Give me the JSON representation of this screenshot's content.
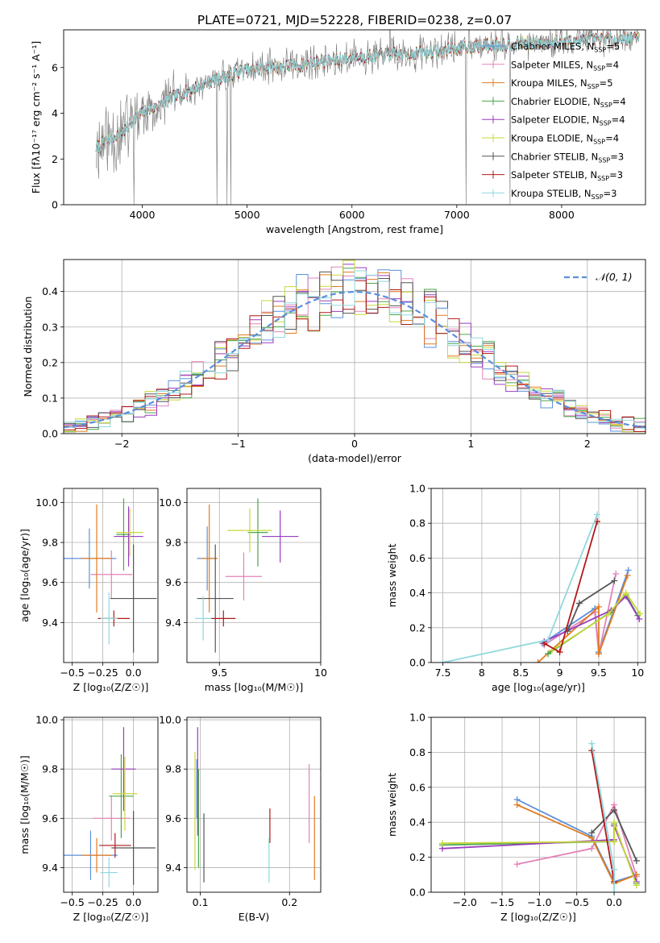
{
  "figure": {
    "title": "PLATE=0721, MJD=52228, FIBERID=0238, z=0.07"
  },
  "colors": {
    "Chabrier MILES": "#5b8fdc",
    "Salpeter MILES": "#e383b9",
    "Kroupa MILES": "#e07b20",
    "Chabrier ELODIE": "#4aa64a",
    "Salpeter ELODIE": "#9a3cc0",
    "Kroupa ELODIE": "#c8d83a",
    "Chabrier STELIB": "#555555",
    "Salpeter STELIB": "#b01818",
    "Kroupa STELIB": "#8fd8dc"
  },
  "chart_data": [
    {
      "type": "line",
      "id": "spectrum",
      "xlabel": "wavelength [Angstrom, rest frame]",
      "ylabel": "Flux [fλ10⁻¹⁷ erg cm⁻² s⁻¹ A⁻¹]",
      "xlim": [
        3250,
        8800
      ],
      "ylim": [
        0,
        7.65
      ],
      "xticks": [
        4000,
        5000,
        6000,
        7000,
        8000
      ],
      "yticks": [
        0,
        2,
        4,
        6
      ],
      "grid": false,
      "legend_placement": "right",
      "continuum_anchors": [
        [
          3560,
          2.5
        ],
        [
          3700,
          2.9
        ],
        [
          3850,
          3.3
        ],
        [
          3950,
          3.9
        ],
        [
          4100,
          4.2
        ],
        [
          4300,
          4.7
        ],
        [
          4600,
          5.3
        ],
        [
          4900,
          5.8
        ],
        [
          5200,
          6.0
        ],
        [
          5500,
          6.1
        ],
        [
          5800,
          6.3
        ],
        [
          6100,
          6.5
        ],
        [
          6500,
          6.6
        ],
        [
          6800,
          6.7
        ],
        [
          7100,
          6.9
        ],
        [
          7400,
          7.0
        ],
        [
          7800,
          7.1
        ],
        [
          8200,
          7.2
        ],
        [
          8700,
          7.3
        ]
      ],
      "legend": [
        {
          "name": "Chabrier MILES",
          "nssp": "5"
        },
        {
          "name": "Salpeter MILES",
          "nssp": "4"
        },
        {
          "name": "Kroupa MILES",
          "nssp": "5"
        },
        {
          "name": "Chabrier ELODIE",
          "nssp": "4"
        },
        {
          "name": "Salpeter ELODIE",
          "nssp": "4"
        },
        {
          "name": "Kroupa ELODIE",
          "nssp": "4"
        },
        {
          "name": "Chabrier STELIB",
          "nssp": "3"
        },
        {
          "name": "Salpeter STELIB",
          "nssp": "3"
        },
        {
          "name": "Kroupa STELIB",
          "nssp": "3"
        }
      ]
    },
    {
      "type": "histogram",
      "id": "residuals",
      "xlabel": "(data-model)/error",
      "ylabel": "Normed distribution",
      "xlim": [
        -2.5,
        2.5
      ],
      "ylim": [
        0,
        0.49
      ],
      "xticks": [
        -2,
        -1,
        0,
        1,
        2
      ],
      "yticks": [
        0.0,
        0.1,
        0.2,
        0.3,
        0.4
      ],
      "grid": true,
      "bin_width": 0.1,
      "bin_start": -2.5,
      "reference_curve": {
        "label": "𝒩(0, 1)",
        "mean": 0,
        "sigma": 1,
        "color": "#5b8fdc"
      }
    },
    {
      "type": "scatter",
      "id": "age-vs-Z",
      "xlabel": "Z [log₁₀(Z/Z☉)]",
      "ylabel": "age  [log₁₀(age/yr)]",
      "xlim": [
        -0.57,
        0.2
      ],
      "ylim": [
        9.2,
        10.07
      ],
      "xticks": [
        -0.5,
        -0.25,
        0.0
      ],
      "xticklabels": [
        "−0.5",
        "−0.25",
        "0.0"
      ],
      "yticks": [
        9.4,
        9.6,
        9.8,
        10.0
      ],
      "grid": true,
      "points": [
        {
          "model": "Chabrier MILES",
          "x": -0.36,
          "y": 9.72,
          "xerr": 0.22,
          "yerr": 0.15
        },
        {
          "model": "Salpeter MILES",
          "x": -0.18,
          "y": 9.64,
          "xerr": 0.17,
          "yerr": 0.12
        },
        {
          "model": "Kroupa MILES",
          "x": -0.3,
          "y": 9.72,
          "xerr": 0.12,
          "yerr": 0.27
        },
        {
          "model": "Chabrier ELODIE",
          "x": -0.08,
          "y": 9.84,
          "xerr": 0.06,
          "yerr": 0.18
        },
        {
          "model": "Salpeter ELODIE",
          "x": -0.04,
          "y": 9.83,
          "xerr": 0.12,
          "yerr": 0.15
        },
        {
          "model": "Kroupa ELODIE",
          "x": -0.03,
          "y": 9.85,
          "xerr": 0.11,
          "yerr": 0.12
        },
        {
          "model": "Chabrier STELIB",
          "x": 0.0,
          "y": 9.52,
          "xerr": 0.19,
          "yerr": 0.27
        },
        {
          "model": "Salpeter STELIB",
          "x": -0.16,
          "y": 9.42,
          "xerr": 0.13,
          "yerr": 0.04
        },
        {
          "model": "Kroupa STELIB",
          "x": -0.2,
          "y": 9.42,
          "xerr": 0.07,
          "yerr": 0.13
        }
      ]
    },
    {
      "type": "scatter",
      "id": "age-vs-mass",
      "xlabel": "mass [log₁₀(M/M☉)]",
      "ylabel": "",
      "xlim": [
        9.34,
        10.0
      ],
      "ylim": [
        9.2,
        10.07
      ],
      "xticks": [
        9.5,
        10.0
      ],
      "yticks": [
        9.4,
        9.6,
        9.8,
        10.0
      ],
      "grid": true,
      "points": [
        {
          "model": "Chabrier MILES",
          "x": 9.44,
          "y": 9.72,
          "xerr": 0.05,
          "yerr": 0.16
        },
        {
          "model": "Salpeter MILES",
          "x": 9.62,
          "y": 9.63,
          "xerr": 0.09,
          "yerr": 0.12
        },
        {
          "model": "Kroupa MILES",
          "x": 9.45,
          "y": 9.72,
          "xerr": 0.04,
          "yerr": 0.27
        },
        {
          "model": "Chabrier ELODIE",
          "x": 9.69,
          "y": 9.85,
          "xerr": 0.05,
          "yerr": 0.17
        },
        {
          "model": "Salpeter ELODIE",
          "x": 9.8,
          "y": 9.83,
          "xerr": 0.09,
          "yerr": 0.13
        },
        {
          "model": "Kroupa ELODIE",
          "x": 9.65,
          "y": 9.86,
          "xerr": 0.11,
          "yerr": 0.11
        },
        {
          "model": "Chabrier STELIB",
          "x": 9.48,
          "y": 9.52,
          "xerr": 0.09,
          "yerr": 0.27
        },
        {
          "model": "Salpeter STELIB",
          "x": 9.52,
          "y": 9.42,
          "xerr": 0.06,
          "yerr": 0.04
        },
        {
          "model": "Kroupa STELIB",
          "x": 9.42,
          "y": 9.42,
          "xerr": 0.04,
          "yerr": 0.11
        }
      ]
    },
    {
      "type": "line",
      "id": "mass-weight-vs-age",
      "xlabel": "age  [log₁₀(age/yr)]",
      "ylabel": "mass weight",
      "xlim": [
        7.35,
        10.1
      ],
      "ylim": [
        0.0,
        1.0
      ],
      "xticks": [
        7.5,
        8.0,
        8.5,
        9.0,
        9.5,
        10.0
      ],
      "yticks": [
        0.0,
        0.2,
        0.4,
        0.6,
        0.8,
        1.0
      ],
      "grid": true,
      "series": [
        {
          "name": "Chabrier MILES",
          "points": [
            [
              8.78,
              0.11
            ],
            [
              9.45,
              0.31
            ],
            [
              9.5,
              0.06
            ],
            [
              9.88,
              0.53
            ]
          ]
        },
        {
          "name": "Salpeter MILES",
          "points": [
            [
              8.8,
              0.1
            ],
            [
              9.45,
              0.29
            ],
            [
              9.5,
              0.05
            ],
            [
              9.72,
              0.51
            ]
          ]
        },
        {
          "name": "Kroupa MILES",
          "points": [
            [
              8.72,
              0.0
            ],
            [
              9.5,
              0.32
            ],
            [
              9.5,
              0.05
            ],
            [
              9.87,
              0.5
            ]
          ]
        },
        {
          "name": "Chabrier ELODIE",
          "points": [
            [
              8.85,
              0.05
            ],
            [
              9.65,
              0.29
            ],
            [
              9.85,
              0.39
            ],
            [
              10.0,
              0.27
            ]
          ]
        },
        {
          "name": "Salpeter ELODIE",
          "points": [
            [
              8.8,
              0.12
            ],
            [
              9.66,
              0.3
            ],
            [
              9.85,
              0.38
            ],
            [
              10.02,
              0.25
            ]
          ]
        },
        {
          "name": "Kroupa ELODIE",
          "points": [
            [
              8.9,
              0.07
            ],
            [
              9.63,
              0.28
            ],
            [
              9.85,
              0.4
            ],
            [
              10.03,
              0.28
            ]
          ]
        },
        {
          "name": "Chabrier STELIB",
          "points": [
            [
              9.1,
              0.18
            ],
            [
              9.25,
              0.34
            ],
            [
              9.7,
              0.47
            ]
          ]
        },
        {
          "name": "Salpeter STELIB",
          "points": [
            [
              8.8,
              0.11
            ],
            [
              9.0,
              0.06
            ],
            [
              9.48,
              0.81
            ]
          ]
        },
        {
          "name": "Kroupa STELIB",
          "points": [
            [
              7.5,
              0.0
            ],
            [
              8.85,
              0.13
            ],
            [
              9.48,
              0.85
            ]
          ]
        }
      ]
    },
    {
      "type": "scatter",
      "id": "mass-vs-Z",
      "xlabel": "Z [log₁₀(Z/Z☉)]",
      "ylabel": "mass [log₁₀(M/M☉)]",
      "xlim": [
        -0.57,
        0.2
      ],
      "ylim": [
        9.3,
        10.01
      ],
      "xticks": [
        -0.5,
        -0.25,
        0.0
      ],
      "xticklabels": [
        "−0.5",
        "−0.25",
        "0.0"
      ],
      "yticks": [
        9.4,
        9.6,
        9.8,
        10.0
      ],
      "grid": true,
      "points": [
        {
          "model": "Chabrier MILES",
          "x": -0.35,
          "y": 9.45,
          "xerr": 0.22,
          "yerr": 0.1
        },
        {
          "model": "Salpeter MILES",
          "x": -0.18,
          "y": 9.6,
          "xerr": 0.15,
          "yerr": 0.09
        },
        {
          "model": "Kroupa MILES",
          "x": -0.3,
          "y": 9.45,
          "xerr": 0.12,
          "yerr": 0.07
        },
        {
          "model": "Chabrier ELODIE",
          "x": -0.1,
          "y": 9.69,
          "xerr": 0.1,
          "yerr": 0.17
        },
        {
          "model": "Salpeter ELODIE",
          "x": -0.08,
          "y": 9.8,
          "xerr": 0.1,
          "yerr": 0.17
        },
        {
          "model": "Kroupa ELODIE",
          "x": -0.07,
          "y": 9.7,
          "xerr": 0.1,
          "yerr": 0.15
        },
        {
          "model": "Chabrier STELIB",
          "x": 0.0,
          "y": 9.48,
          "xerr": 0.18,
          "yerr": 0.15
        },
        {
          "model": "Salpeter STELIB",
          "x": -0.15,
          "y": 9.49,
          "xerr": 0.13,
          "yerr": 0.05
        },
        {
          "model": "Kroupa STELIB",
          "x": -0.2,
          "y": 9.38,
          "xerr": 0.07,
          "yerr": 0.06
        }
      ]
    },
    {
      "type": "errorbar",
      "id": "mass-vs-ebv",
      "xlabel": "E(B-V)",
      "ylabel": "",
      "xlim": [
        0.085,
        0.235
      ],
      "ylim": [
        9.3,
        10.01
      ],
      "xticks": [
        0.1,
        0.2
      ],
      "yticks": [
        9.4,
        9.6,
        9.8,
        10.0
      ],
      "grid": true,
      "points": [
        {
          "model": "Chabrier MILES",
          "x": 0.096,
          "y": 9.72,
          "yerr": 0.12
        },
        {
          "model": "Salpeter MILES",
          "x": 0.222,
          "y": 9.66,
          "yerr": 0.16
        },
        {
          "model": "Kroupa MILES",
          "x": 0.228,
          "y": 9.52,
          "yerr": 0.17
        },
        {
          "model": "Chabrier ELODIE",
          "x": 0.098,
          "y": 9.6,
          "yerr": 0.2
        },
        {
          "model": "Salpeter ELODIE",
          "x": 0.097,
          "y": 9.75,
          "yerr": 0.22
        },
        {
          "model": "Kroupa ELODIE",
          "x": 0.094,
          "y": 9.63,
          "yerr": 0.24
        },
        {
          "model": "Chabrier STELIB",
          "x": 0.104,
          "y": 9.48,
          "yerr": 0.14
        },
        {
          "model": "Salpeter STELIB",
          "x": 0.178,
          "y": 9.57,
          "yerr": 0.07
        },
        {
          "model": "Kroupa STELIB",
          "x": 0.177,
          "y": 9.43,
          "yerr": 0.09
        }
      ]
    },
    {
      "type": "line",
      "id": "mass-weight-vs-Z",
      "xlabel": "Z [log₁₀(Z/Z☉)]",
      "ylabel": "mass weight",
      "xlim": [
        -2.45,
        0.42
      ],
      "ylim": [
        0.0,
        1.0
      ],
      "xticks": [
        -2.0,
        -1.5,
        -1.0,
        -0.5,
        0.0
      ],
      "xticklabels": [
        "−2.0",
        "−1.5",
        "−1.0",
        "−0.5",
        "0.0"
      ],
      "yticks": [
        0.0,
        0.2,
        0.4,
        0.6,
        0.8,
        1.0
      ],
      "grid": true,
      "series": [
        {
          "name": "Chabrier MILES",
          "points": [
            [
              -1.3,
              0.53
            ],
            [
              -0.3,
              0.32
            ],
            [
              0.0,
              0.06
            ],
            [
              0.3,
              0.1
            ]
          ]
        },
        {
          "name": "Salpeter MILES",
          "points": [
            [
              -1.3,
              0.16
            ],
            [
              -0.3,
              0.25
            ],
            [
              0.0,
              0.5
            ],
            [
              0.3,
              0.09
            ]
          ]
        },
        {
          "name": "Kroupa MILES",
          "points": [
            [
              -1.3,
              0.5
            ],
            [
              -0.3,
              0.31
            ],
            [
              0.0,
              0.05
            ],
            [
              0.3,
              0.1
            ]
          ]
        },
        {
          "name": "Chabrier ELODIE",
          "points": [
            [
              -2.3,
              0.27
            ],
            [
              0.0,
              0.29
            ],
            [
              0.0,
              0.39
            ],
            [
              0.3,
              0.05
            ]
          ]
        },
        {
          "name": "Salpeter ELODIE",
          "points": [
            [
              -2.3,
              0.25
            ],
            [
              0.0,
              0.3
            ],
            [
              0.0,
              0.38
            ],
            [
              0.3,
              0.06
            ]
          ]
        },
        {
          "name": "Kroupa ELODIE",
          "points": [
            [
              -2.3,
              0.28
            ],
            [
              0.0,
              0.29
            ],
            [
              0.0,
              0.4
            ],
            [
              0.3,
              0.04
            ]
          ]
        },
        {
          "name": "Chabrier STELIB",
          "points": [
            [
              -0.3,
              0.34
            ],
            [
              0.0,
              0.47
            ],
            [
              0.3,
              0.18
            ]
          ]
        },
        {
          "name": "Salpeter STELIB",
          "points": [
            [
              -0.3,
              0.81
            ],
            [
              0.0,
              0.06
            ]
          ]
        },
        {
          "name": "Kroupa STELIB",
          "points": [
            [
              -0.3,
              0.85
            ],
            [
              0.0,
              0.13
            ],
            [
              0.0,
              0.0
            ]
          ]
        }
      ]
    }
  ]
}
